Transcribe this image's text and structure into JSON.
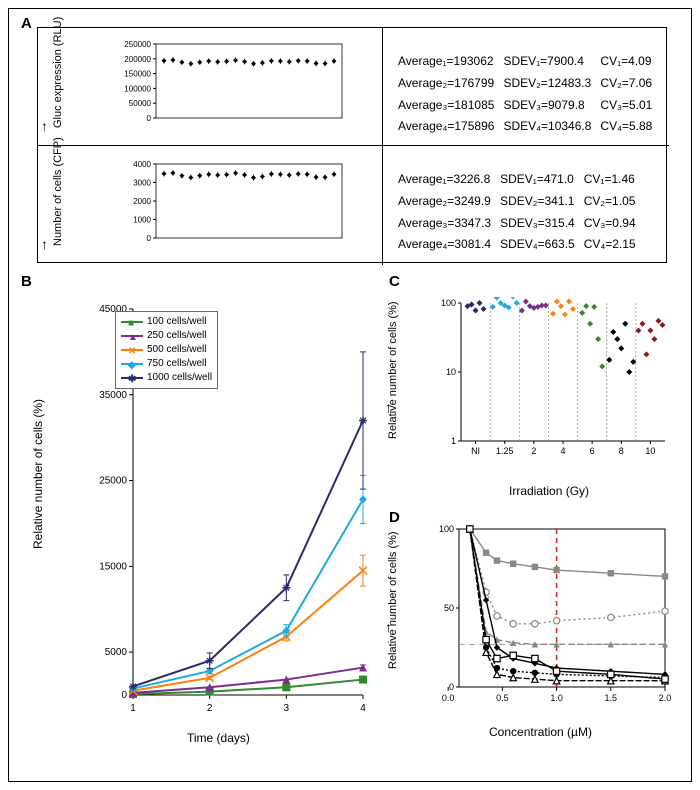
{
  "panelLabels": {
    "A": "A",
    "B": "B",
    "C": "C",
    "D": "D"
  },
  "panelA": {
    "gluc": {
      "ylabel": "Gluc expression (RLU)",
      "yticks": [
        0,
        50000,
        100000,
        150000,
        200000,
        250000
      ],
      "ytick_labels": [
        "0",
        "50000",
        "100000",
        "150000",
        "200000",
        "250000"
      ],
      "n_points": 20,
      "y_mean": 190000,
      "y_sd": 9000,
      "stats": [
        {
          "avg": "Average₁=193062",
          "sdev": "SDEV₁=7900.4",
          "cv": "CV₁=4.09"
        },
        {
          "avg": "Average₂=176799",
          "sdev": "SDEV₂=12483.3",
          "cv": "CV₂=7.06"
        },
        {
          "avg": "Average₃=181085",
          "sdev": "SDEV₃=9079.8",
          "cv": "CV₃=5.01"
        },
        {
          "avg": "Average₄=175896",
          "sdev": "SDEV₄=10346.8",
          "cv": "CV₄=5.88"
        }
      ]
    },
    "cfp": {
      "ylabel": "Number of cells (CFP)",
      "yticks": [
        0,
        1000,
        2000,
        3000,
        4000
      ],
      "ytick_labels": [
        "0",
        "1000",
        "2000",
        "3000",
        "4000"
      ],
      "n_points": 20,
      "y_mean": 3400,
      "y_sd": 180,
      "stats": [
        {
          "avg": "Average₁=3226.8",
          "sdev": "SDEV₁=471.0",
          "cv": "CV₁=1.46"
        },
        {
          "avg": "Average₂=3249.9",
          "sdev": "SDEV₂=341.1",
          "cv": "CV₂=1.05"
        },
        {
          "avg": "Average₃=3347.3",
          "sdev": "SDEV₃=315.4",
          "cv": "CV₃=0.94"
        },
        {
          "avg": "Average₄=3081.4",
          "sdev": "SDEV₄=663.5",
          "cv": "CV₄=2.15"
        }
      ]
    }
  },
  "panelB": {
    "ylabel": "Relative number of cells (%)",
    "xlabel": "Time (days)",
    "xticks": [
      1,
      2,
      3,
      4
    ],
    "yticks": [
      0,
      5000,
      15000,
      25000,
      35000,
      45000
    ],
    "ytick_labels": [
      "0",
      "5000",
      "15000",
      "25000",
      "35000",
      "45000"
    ],
    "series": [
      {
        "label": "100 cells/well",
        "color": "#2e8b2e",
        "marker": "sq",
        "y": [
          100,
          400,
          900,
          1800
        ],
        "err": [
          0,
          0,
          0,
          200
        ]
      },
      {
        "label": "250 cells/well",
        "color": "#7b2d8e",
        "marker": "tri",
        "y": [
          250,
          900,
          1800,
          3200
        ],
        "err": [
          0,
          0,
          0,
          300
        ]
      },
      {
        "label": "500 cells/well",
        "color": "#ff7f0e",
        "marker": "x",
        "y": [
          500,
          2000,
          6800,
          14500
        ],
        "err": [
          0,
          200,
          500,
          1800
        ]
      },
      {
        "label": "750 cells/well",
        "color": "#1fa9e0",
        "marker": "diamond",
        "y": [
          750,
          2800,
          7500,
          22800
        ],
        "err": [
          0,
          300,
          700,
          2800
        ]
      },
      {
        "label": "1000 cells/well",
        "color": "#2a2a6d",
        "marker": "star",
        "y": [
          1000,
          4000,
          12500,
          32000
        ],
        "err": [
          0,
          900,
          1500,
          8000
        ]
      }
    ]
  },
  "panelC": {
    "ylabel": "Relative number of cells (%)",
    "xlabel": "Irradiation (Gy)",
    "xticks": [
      "NI",
      "1.25",
      "2",
      "4",
      "6",
      "8",
      "10"
    ],
    "yticks": [
      1,
      10,
      100
    ],
    "ytick_labels": [
      "1",
      "10",
      "100"
    ],
    "groups": [
      {
        "color": "#2a2a6d",
        "x": 0,
        "y": [
          90,
          95,
          78,
          100,
          82
        ]
      },
      {
        "color": "#1fa9e0",
        "x": 1,
        "y": [
          88,
          120,
          100,
          92,
          86,
          125,
          100
        ]
      },
      {
        "color": "#7b2d8e",
        "x": 2,
        "y": [
          78,
          105,
          90,
          85,
          88,
          92,
          92
        ]
      },
      {
        "color": "#ff7f0e",
        "x": 3,
        "y": [
          70,
          105,
          90,
          68,
          105,
          82
        ]
      },
      {
        "color": "#2e8b2e",
        "x": 4,
        "y": [
          72,
          90,
          50,
          88,
          30,
          12
        ]
      },
      {
        "color": "#000000",
        "x": 5,
        "y": [
          15,
          38,
          30,
          22,
          50,
          10,
          14
        ]
      },
      {
        "color": "#8b1a1a",
        "x": 6,
        "y": [
          40,
          50,
          18,
          40,
          30,
          55,
          48
        ]
      }
    ]
  },
  "panelD": {
    "ylabel": "Relative number of cells (%)",
    "xlabel": "Concentration (µM)",
    "xticks": [
      0,
      0.5,
      1.0,
      1.5,
      2.0
    ],
    "yticks": [
      0,
      50,
      100
    ],
    "ytick_labels": [
      "0",
      "50",
      "100"
    ],
    "vline_x": 1.0,
    "vline_color": "#d02020",
    "series": [
      {
        "color": "#888",
        "dash": "4 0",
        "marker": "sq",
        "y": [
          100,
          85,
          80,
          78,
          76,
          74,
          72,
          70
        ]
      },
      {
        "color": "#888",
        "dash": "2 3",
        "marker": "circle-open",
        "y": [
          100,
          60,
          45,
          40,
          40,
          42,
          44,
          48
        ]
      },
      {
        "color": "#888",
        "dash": "6 3",
        "marker": "tri",
        "y": [
          100,
          35,
          30,
          28,
          27,
          27,
          27,
          27
        ]
      },
      {
        "color": "#000",
        "dash": "4 0",
        "marker": "diamond",
        "y": [
          100,
          55,
          25,
          18,
          15,
          12,
          10,
          8
        ]
      },
      {
        "color": "#000",
        "dash": "2 2",
        "marker": "circle",
        "y": [
          100,
          25,
          12,
          10,
          9,
          8,
          7,
          6
        ]
      },
      {
        "color": "#000",
        "dash": "6 2",
        "marker": "tri-open",
        "y": [
          100,
          22,
          8,
          6,
          5,
          4,
          4,
          4
        ]
      },
      {
        "color": "#000",
        "dash": "4 0",
        "marker": "sq-open",
        "y": [
          100,
          30,
          18,
          20,
          18,
          10,
          8,
          5
        ]
      }
    ],
    "xvalues": [
      0.2,
      0.35,
      0.45,
      0.6,
      0.8,
      1.0,
      1.5,
      2.0
    ]
  },
  "colors": {
    "text": "#000",
    "border": "#000"
  }
}
